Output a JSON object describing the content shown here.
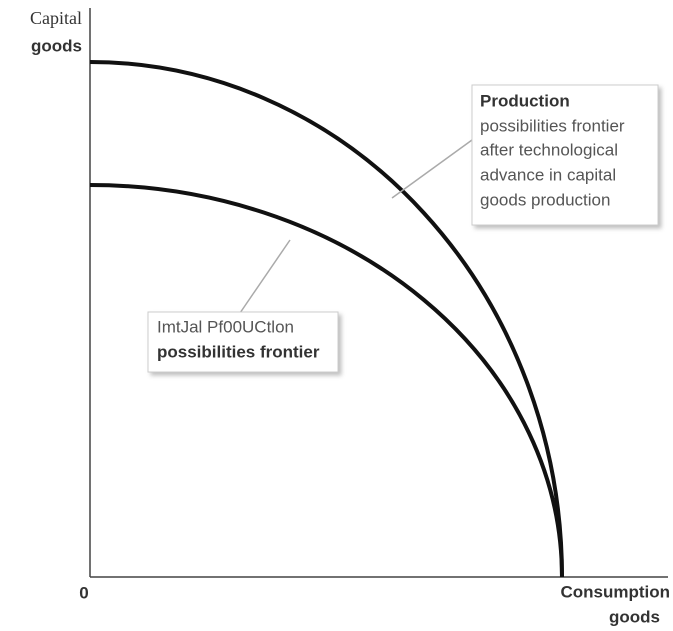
{
  "y_axis_label": [
    "Capital",
    "goods"
  ],
  "origin_label": "0",
  "x_axis_label": [
    "Consumption",
    "goods"
  ],
  "outer_callout": {
    "title": "Production",
    "lines": [
      "possibilities frontier",
      "after technological",
      "advance in capital",
      "goods production"
    ]
  },
  "inner_callout": {
    "lines": [
      "ImtJal Pf00UCtlon",
      "possibilities frontier"
    ]
  }
}
